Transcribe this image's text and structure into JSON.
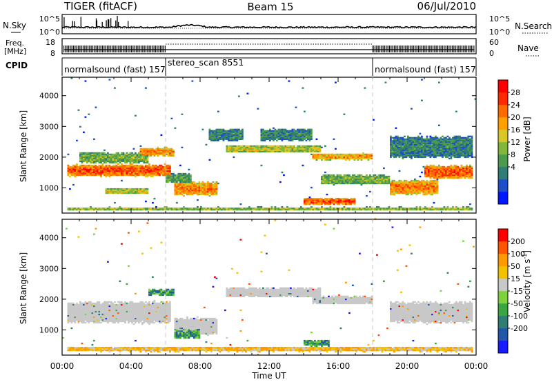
{
  "header": {
    "title": "TIGER (fitACF)",
    "beam": "Beam 15",
    "date": "06/Jul/2010"
  },
  "nsky_panel": {
    "left_label": "N.Sky",
    "right_label": "N.Search",
    "left_ticks": [
      "10^5",
      "10^0"
    ],
    "right_ticks": [
      "10^5",
      "10^0"
    ]
  },
  "freq_panel": {
    "left_label_1": "Freq.",
    "left_label_2": "[MHz]",
    "right_label": "Nave",
    "left_ticks": [
      "18",
      "8"
    ],
    "right_ticks": [
      "60",
      "0"
    ]
  },
  "cpid_panel": {
    "label": "CPID",
    "segments": [
      {
        "name": "normalsound (fast) 157",
        "start_hour": 0,
        "end_hour": 6
      },
      {
        "name": "stereo_scan 8551",
        "start_hour": 6,
        "end_hour": 18
      },
      {
        "name": "normalsound (fast) 157",
        "start_hour": 18,
        "end_hour": 24
      }
    ]
  },
  "chart_data": [
    {
      "type": "heatmap",
      "quantity": "power",
      "ylabel": "Slant Range [km]",
      "xlabel": "",
      "xlim": [
        0,
        24
      ],
      "ylim": [
        180,
        4600
      ],
      "yticks": [
        "1000",
        "2000",
        "3000",
        "4000"
      ],
      "colorbar": {
        "label": "Power [dB]",
        "ticks": [
          "28",
          "24",
          "20",
          "16",
          "12",
          "8",
          "4"
        ],
        "colors": [
          "#0018ff",
          "#1f4fc8",
          "#2f7d74",
          "#4c9a4c",
          "#7fb63b",
          "#d9c727",
          "#ff9f00",
          "#ff6a00",
          "#ff2a00",
          "#ff0000"
        ]
      },
      "echo_regions": [
        {
          "x_start": 0.3,
          "x_end": 6.3,
          "range_center": 1550,
          "range_width": 500,
          "level": 0.85
        },
        {
          "x_start": 1.0,
          "x_end": 5.0,
          "range_center": 1950,
          "range_width": 450,
          "level": 0.45
        },
        {
          "x_start": 4.5,
          "x_end": 6.5,
          "range_center": 2150,
          "range_width": 350,
          "level": 0.75
        },
        {
          "x_start": 2.5,
          "x_end": 5.0,
          "range_center": 870,
          "range_width": 250,
          "level": 0.55
        },
        {
          "x_start": 6.5,
          "x_end": 9.0,
          "range_center": 950,
          "range_width": 550,
          "level": 0.75
        },
        {
          "x_start": 6.0,
          "x_end": 7.5,
          "range_center": 1300,
          "range_width": 400,
          "level": 0.4
        },
        {
          "x_start": 9.5,
          "x_end": 15.0,
          "range_center": 2250,
          "range_width": 300,
          "level": 0.55
        },
        {
          "x_start": 8.5,
          "x_end": 10.5,
          "range_center": 2700,
          "range_width": 500,
          "level": 0.3
        },
        {
          "x_start": 11.5,
          "x_end": 14.5,
          "range_center": 2700,
          "range_width": 500,
          "level": 0.3
        },
        {
          "x_start": 14.5,
          "x_end": 18.0,
          "range_center": 2000,
          "range_width": 280,
          "level": 0.7
        },
        {
          "x_start": 14.0,
          "x_end": 17.0,
          "range_center": 540,
          "range_width": 280,
          "level": 0.85
        },
        {
          "x_start": 15.0,
          "x_end": 19.0,
          "range_center": 1250,
          "range_width": 400,
          "level": 0.45
        },
        {
          "x_start": 19.0,
          "x_end": 21.8,
          "range_center": 1000,
          "range_width": 600,
          "level": 0.75
        },
        {
          "x_start": 21.0,
          "x_end": 23.8,
          "range_center": 1500,
          "range_width": 550,
          "level": 0.85
        },
        {
          "x_start": 19.0,
          "x_end": 23.8,
          "range_center": 2300,
          "range_width": 900,
          "level": 0.3
        },
        {
          "x_start": 0.3,
          "x_end": 23.8,
          "range_center": 300,
          "range_width": 150,
          "level": 0.5
        }
      ]
    },
    {
      "type": "heatmap",
      "quantity": "velocity",
      "ylabel": "Slant Range [km]",
      "xlabel": "Time UT",
      "xlim": [
        0,
        24
      ],
      "ylim": [
        180,
        4600
      ],
      "xticks": [
        "00:00",
        "04:00",
        "08:00",
        "12:00",
        "16:00",
        "20:00",
        "00:00"
      ],
      "yticks": [
        "1000",
        "2000",
        "3000",
        "4000"
      ],
      "colorbar": {
        "label_main": "Velocity [m s",
        "label_sup": "-1",
        "label_end": "]",
        "ticks": [
          "200",
          "100",
          "50",
          "15",
          "-15",
          "-50",
          "-100",
          "-200"
        ],
        "colors": [
          "#1a1aff",
          "#2157a8",
          "#2f7d74",
          "#3aa640",
          "#7fd13b",
          "#c8c8c8",
          "#f2c200",
          "#ff9900",
          "#ff5500",
          "#ff0000"
        ]
      },
      "echo_regions": [
        {
          "x_start": 0.3,
          "x_end": 6.3,
          "range_center": 1550,
          "range_width": 900,
          "class": "ground"
        },
        {
          "x_start": 9.5,
          "x_end": 15.0,
          "range_center": 2200,
          "range_width": 400,
          "class": "ground"
        },
        {
          "x_start": 14.5,
          "x_end": 18.0,
          "range_center": 1950,
          "range_width": 350,
          "class": "ground"
        },
        {
          "x_start": 19.0,
          "x_end": 23.8,
          "range_center": 1550,
          "range_width": 900,
          "class": "ground"
        },
        {
          "x_start": 6.5,
          "x_end": 9.0,
          "range_center": 1100,
          "range_width": 700,
          "class": "ground"
        },
        {
          "x_start": 5.0,
          "x_end": 6.5,
          "range_center": 2200,
          "range_width": 250,
          "class": "positive"
        },
        {
          "x_start": 6.5,
          "x_end": 8.0,
          "range_center": 900,
          "range_width": 500,
          "class": "positive"
        },
        {
          "x_start": 14.0,
          "x_end": 15.5,
          "range_center": 550,
          "range_width": 250,
          "class": "positive"
        },
        {
          "x_start": 0.3,
          "x_end": 23.8,
          "range_center": 350,
          "range_width": 200,
          "class": "negative"
        }
      ]
    }
  ]
}
